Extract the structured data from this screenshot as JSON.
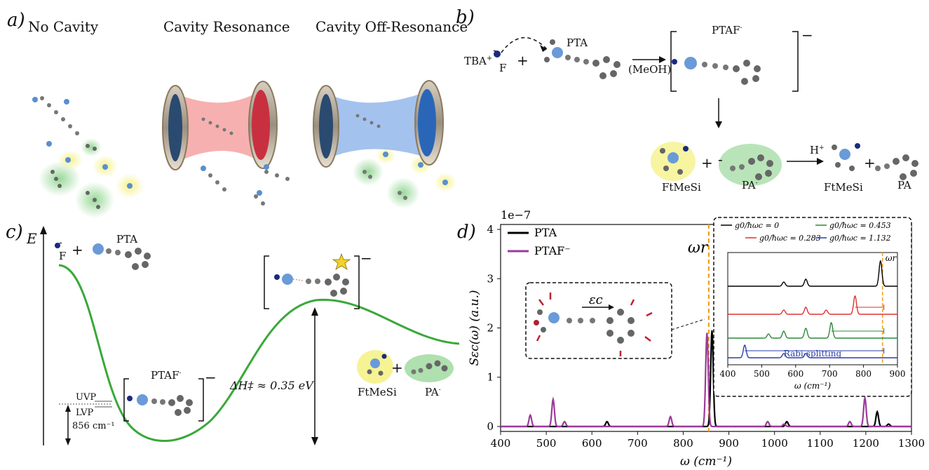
{
  "panel_a": {
    "letter": "a)",
    "titles": [
      "No Cavity",
      "Cavity Resonance",
      "Cavity Off-Resonance"
    ]
  },
  "panel_b": {
    "letter": "b)",
    "tba_label": "TBA",
    "tba_charge": "+",
    "f_label": "F",
    "f_charge": "-",
    "plus1": "+",
    "pta_label": "PTA",
    "solvent": "(MeOH)",
    "ptaf_label": "PTAF",
    "ptaf_charge": "-",
    "bracket_charge": "−",
    "ftmesi_label": "FtMeSi",
    "plus2": "+",
    "pa_label": "PA",
    "pa_charge": "-",
    "h_label": "H",
    "h_charge": "+",
    "ftmesi_label2": "FtMeSi",
    "plus3": "+",
    "pa_label2": "PA"
  },
  "panel_c": {
    "letter": "c)",
    "axis_label": "E",
    "f_label": "F",
    "f_charge": "-",
    "plus": "+",
    "pta_label": "PTA",
    "ptaf_label": "PTAF",
    "ptaf_charge": "-",
    "uvp": "UVP",
    "lvp": "LVP",
    "freq": "856 cm⁻¹",
    "barrier": "ΔH‡ ≈ 0.35 eV",
    "ftmesi_label": "FtMeSi",
    "plus2": "+",
    "pa_label": "PA",
    "pa_charge": "-",
    "bracket_charge": "−"
  },
  "panel_d": {
    "letter": "d)",
    "omega_r_label": "ωr",
    "epsilon_label": "εc",
    "rabi_label": "Rabi-splitting",
    "inset_legend": [
      "g0/ħωc = 0",
      "g0/ħωc = 0.283",
      "g0/ħωc = 0.453",
      "g0/ħωc = 1.132"
    ],
    "inset_xlabel": "ω (cm⁻¹)",
    "inset_ticks": [
      "400",
      "500",
      "600",
      "700",
      "800",
      "900"
    ],
    "colors": {
      "pta": "#000000",
      "ptaf": "#9b3a9b",
      "omega_r": "#f0a020",
      "red": "#e03030",
      "green": "#2a8a3a",
      "blue": "#2a3ea8"
    }
  },
  "chart_data": {
    "type": "line",
    "title": "",
    "xlabel": "ω (cm⁻¹)",
    "ylabel": "Sεc(ω) (a.u.)",
    "y_multiplier": "1e−7",
    "xlim": [
      400,
      1300
    ],
    "ylim": [
      -0.1,
      4.1
    ],
    "xticks": [
      400,
      500,
      600,
      700,
      800,
      900,
      1000,
      1100,
      1200,
      1300
    ],
    "yticks": [
      0,
      1,
      2,
      3,
      4
    ],
    "omega_r": 856,
    "legend": "top-left",
    "series": [
      {
        "name": "PTA",
        "color": "#000000",
        "peaks": [
          [
            633,
            0.1
          ],
          [
            863,
            1.95
          ],
          [
            1027,
            0.1
          ],
          [
            1225,
            0.3
          ],
          [
            1250,
            0.05
          ]
        ]
      },
      {
        "name": "PTAF⁻",
        "color": "#9b3a9b",
        "peaks": [
          [
            465,
            0.23
          ],
          [
            515,
            0.55
          ],
          [
            540,
            0.1
          ],
          [
            772,
            0.2
          ],
          [
            852,
            1.9
          ],
          [
            985,
            0.1
          ],
          [
            1021,
            0.05
          ],
          [
            1165,
            0.1
          ],
          [
            1198,
            0.58
          ]
        ]
      }
    ]
  }
}
